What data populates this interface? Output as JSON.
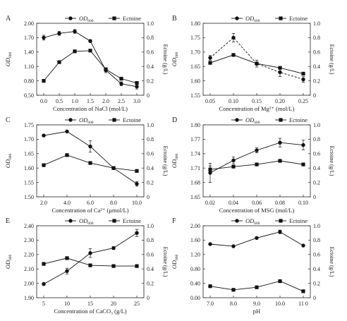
{
  "chart_data": [
    {
      "type": "line",
      "panel_label": "A",
      "xlabel": "Concentration of NaCl (mol/L)",
      "ylabel_left": "OD600",
      "ylabel_right": "Ectoine (g/L)",
      "x": [
        0.0,
        0.5,
        1.0,
        1.5,
        2.0,
        2.5,
        3.0
      ],
      "x_ticks": [
        "0.0",
        "0.5",
        "1.0",
        "1.5",
        "2.0",
        "2.5",
        "3.0"
      ],
      "ylim_left": [
        0.5,
        2.0
      ],
      "y_ticks_left": [
        "0.50",
        "0.80",
        "1.10",
        "1.40",
        "1.70",
        "2.00"
      ],
      "ylim_right": [
        0,
        1.0
      ],
      "y_ticks_right": [
        "0",
        "0.2",
        "0.4",
        "0.6",
        "0.8",
        "1.0"
      ],
      "series": [
        {
          "name": "OD600",
          "axis": "left",
          "marker": "circle",
          "dash": false,
          "values": [
            1.7,
            1.79,
            1.83,
            1.63,
            1.02,
            0.74,
            0.68
          ],
          "errors": [
            0.05,
            0.04,
            0.04,
            0.03,
            0.05,
            0.04,
            0.05
          ]
        },
        {
          "name": "Ectoine",
          "axis": "right",
          "marker": "square",
          "dash": false,
          "values": [
            0.2,
            0.46,
            0.61,
            0.62,
            0.36,
            0.23,
            0.17
          ],
          "errors": [
            0,
            0,
            0,
            0,
            0,
            0,
            0
          ]
        }
      ]
    },
    {
      "type": "line",
      "panel_label": "B",
      "xlabel": "Concentration of Mg²⁺ (mol/L)",
      "ylabel_left": "OD600",
      "ylabel_right": "Ectoine (g/L)",
      "x": [
        0.05,
        0.1,
        0.15,
        0.2,
        0.25
      ],
      "x_ticks": [
        "0.05",
        "0.10",
        "0.15",
        "0.20",
        "0.25"
      ],
      "ylim_left": [
        1.55,
        1.8
      ],
      "y_ticks_left": [
        "1.55",
        "1.60",
        "1.65",
        "1.70",
        "1.75",
        "1.80"
      ],
      "ylim_right": [
        0,
        1.0
      ],
      "y_ticks_right": [
        "0",
        "0.2",
        "0.4",
        "0.6",
        "0.8",
        "1.0"
      ],
      "series": [
        {
          "name": "OD600",
          "axis": "left",
          "marker": "circle",
          "dash": true,
          "values": [
            1.68,
            1.75,
            1.66,
            1.63,
            1.605
          ],
          "errors": [
            0.008,
            0.015,
            0.012,
            0.015,
            0.01
          ]
        },
        {
          "name": "Ectoine",
          "axis": "right",
          "marker": "square",
          "dash": false,
          "values": [
            0.45,
            0.56,
            0.44,
            0.38,
            0.3
          ],
          "errors": [
            0,
            0,
            0,
            0,
            0
          ]
        }
      ]
    },
    {
      "type": "line",
      "panel_label": "C",
      "xlabel": "Concentration of Ca²⁺ (μmol/L)",
      "ylabel_left": "OD600",
      "ylabel_right": "Ectoine (g/L)",
      "x": [
        2.0,
        4.0,
        6.0,
        8.0,
        10.0
      ],
      "x_ticks": [
        "2.0",
        "4.0",
        "6.0",
        "8.0",
        "10.0"
      ],
      "ylim_left": [
        1.5,
        1.75
      ],
      "y_ticks_left": [
        "1.50",
        "1.55",
        "1.60",
        "1.65",
        "1.70",
        "1.75"
      ],
      "ylim_right": [
        0,
        1.0
      ],
      "y_ticks_right": [
        "0",
        "0.2",
        "0.4",
        "0.6",
        "0.8",
        "1.0"
      ],
      "series": [
        {
          "name": "OD600",
          "axis": "left",
          "marker": "circle",
          "dash": false,
          "values": [
            1.713,
            1.727,
            1.675,
            1.6,
            1.545
          ],
          "errors": [
            0,
            0,
            0.02,
            0.005,
            0.008
          ]
        },
        {
          "name": "Ectoine",
          "axis": "right",
          "marker": "square",
          "dash": false,
          "values": [
            0.44,
            0.58,
            0.47,
            0.4,
            0.36
          ],
          "errors": [
            0,
            0,
            0,
            0.02,
            0
          ]
        }
      ]
    },
    {
      "type": "line",
      "panel_label": "D",
      "xlabel": "Concentration of MSG (mol/L)",
      "ylabel_left": "OD600",
      "ylabel_right": "Ectoine (g/L)",
      "x": [
        0.02,
        0.04,
        0.06,
        0.08,
        0.1
      ],
      "x_ticks": [
        "0.02",
        "0.04",
        "0.06",
        "0.08",
        "0.10"
      ],
      "ylim_left": [
        1.65,
        1.8
      ],
      "y_ticks_left": [
        "1.65",
        "1.68",
        "1.71",
        "1.74",
        "1.77",
        "1.80"
      ],
      "ylim_right": [
        0,
        1.0
      ],
      "y_ticks_right": [
        "0",
        "0.2",
        "0.4",
        "0.6",
        "0.8",
        "1.0"
      ],
      "series": [
        {
          "name": "OD600",
          "axis": "left",
          "marker": "circle",
          "dash": false,
          "values": [
            1.7,
            1.726,
            1.747,
            1.763,
            1.758
          ],
          "errors": [
            0.02,
            0.007,
            0.005,
            0.009,
            0.01
          ]
        },
        {
          "name": "Ectoine",
          "axis": "right",
          "marker": "square",
          "dash": false,
          "values": [
            0.38,
            0.42,
            0.45,
            0.5,
            0.45
          ],
          "errors": [
            0.05,
            0,
            0,
            0,
            0
          ]
        }
      ]
    },
    {
      "type": "line",
      "panel_label": "E",
      "xlabel": "Concentration of CaCO₃ (g/L)",
      "ylabel_left": "OD600",
      "ylabel_right": "Ectoine (g/L)",
      "x": [
        5,
        10,
        15,
        20,
        25
      ],
      "x_ticks": [
        "5",
        "10",
        "15",
        "20",
        "25"
      ],
      "ylim_left": [
        1.9,
        2.4
      ],
      "y_ticks_left": [
        "1.90",
        "2.00",
        "2.10",
        "2.20",
        "2.30",
        "2.40"
      ],
      "ylim_right": [
        0,
        1.0
      ],
      "y_ticks_right": [
        "0",
        "0.2",
        "0.4",
        "0.6",
        "0.8",
        "1.0"
      ],
      "series": [
        {
          "name": "OD600",
          "axis": "left",
          "marker": "circle",
          "dash": false,
          "values": [
            1.995,
            2.085,
            2.21,
            2.245,
            2.35
          ],
          "errors": [
            0.01,
            0.02,
            0.03,
            0.01,
            0.025
          ]
        },
        {
          "name": "Ectoine",
          "axis": "right",
          "marker": "square",
          "dash": false,
          "values": [
            0.47,
            0.55,
            0.45,
            0.44,
            0.44
          ],
          "errors": [
            0,
            0,
            0.02,
            0,
            0
          ]
        }
      ]
    },
    {
      "type": "line",
      "panel_label": "F",
      "xlabel": "pH",
      "ylabel_left": "OD600",
      "ylabel_right": "Ectoine (g/L)",
      "x": [
        7.0,
        8.0,
        9.0,
        10.0,
        11.0
      ],
      "x_ticks": [
        "7.0",
        "8.0",
        "9.0",
        "10.0",
        "11 0"
      ],
      "ylim_left": [
        0.0,
        2.0
      ],
      "y_ticks_left": [
        "0.00",
        "0.40",
        "0.80",
        "1.20",
        "1.60",
        "2.00"
      ],
      "ylim_right": [
        0,
        1.0
      ],
      "y_ticks_right": [
        "0",
        "0.2",
        "0.4",
        "0.6",
        "0.8",
        "1.0"
      ],
      "series": [
        {
          "name": "OD600",
          "axis": "left",
          "marker": "circle",
          "dash": false,
          "values": [
            1.49,
            1.43,
            1.66,
            1.83,
            1.45
          ],
          "errors": [
            0,
            0,
            0,
            0.05,
            0
          ]
        },
        {
          "name": "Ectoine",
          "axis": "right",
          "marker": "square",
          "dash": false,
          "values": [
            0.16,
            0.11,
            0.145,
            0.23,
            0.09
          ],
          "errors": [
            0,
            0,
            0,
            0,
            0
          ]
        }
      ]
    }
  ]
}
